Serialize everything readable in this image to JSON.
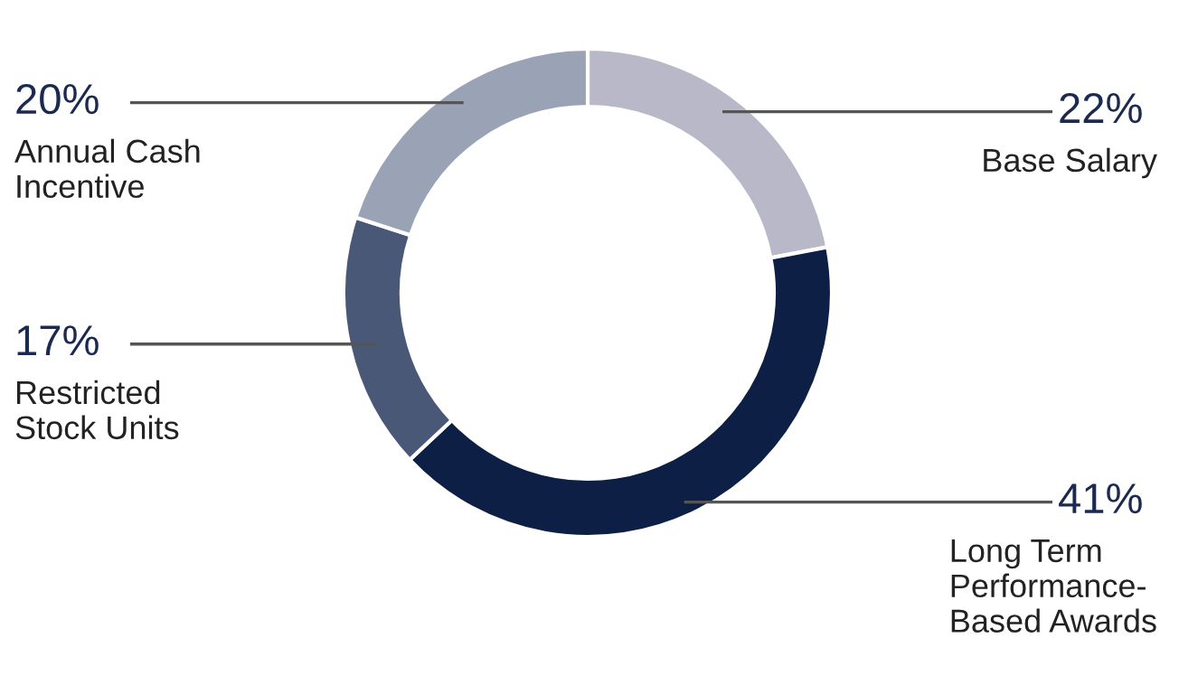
{
  "chart_data": {
    "type": "donut",
    "categories": [
      "Base Salary",
      "Long Term Performance-Based Awards",
      "Restricted Stock Units",
      "Annual Cash Incentive"
    ],
    "values": [
      22,
      41,
      17,
      20
    ],
    "colors": [
      "#b8b8c8",
      "#0d1f45",
      "#4a5878",
      "#9aa3b5"
    ],
    "value_labels": [
      "22%",
      "41%",
      "17%",
      "20%"
    ]
  }
}
